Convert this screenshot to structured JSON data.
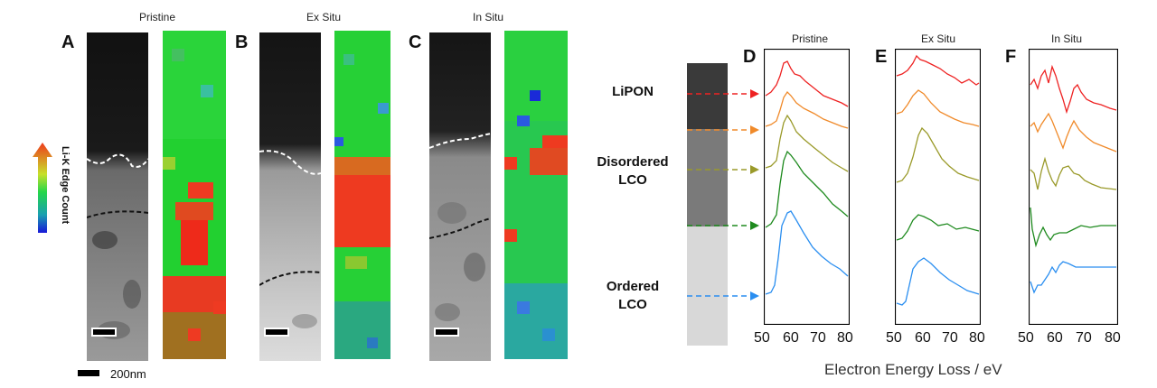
{
  "left_figure": {
    "panels": [
      {
        "letter": "A",
        "title": "Pristine"
      },
      {
        "letter": "B",
        "title": "Ex Situ"
      },
      {
        "letter": "C",
        "title": "In Situ"
      }
    ],
    "colorbar_label": "Li-K Edge Count",
    "scalebar_label": "200nm"
  },
  "right_figure": {
    "layers": {
      "lipon": "LiPON",
      "disordered": "Disordered\nLCO",
      "ordered": "Ordered\nLCO"
    },
    "panels": [
      {
        "letter": "D",
        "title": "Pristine"
      },
      {
        "letter": "E",
        "title": "Ex Situ"
      },
      {
        "letter": "F",
        "title": "In Situ"
      }
    ],
    "x_ticks": [
      "50",
      "60",
      "70",
      "80"
    ],
    "x_axis_title": "Electron Energy Loss / eV",
    "series_colors": [
      "#ee2222",
      "#f08a2a",
      "#9a9a2a",
      "#1e8a1e",
      "#2a8ef0"
    ]
  }
}
